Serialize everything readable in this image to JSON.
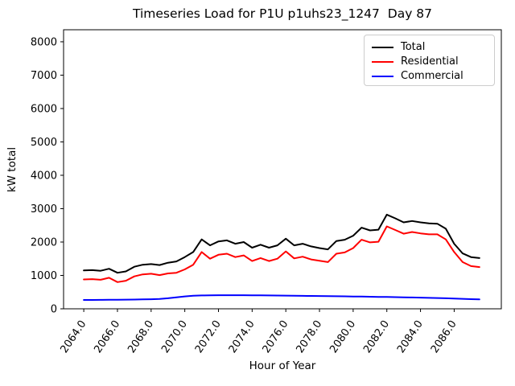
{
  "title": "Timeseries Load for P1U p1uhs23_1247  Day 87",
  "chart_data": {
    "type": "line",
    "title": "Timeseries Load for P1U p1uhs23_1247  Day 87",
    "xlabel": "Hour of Year",
    "ylabel": "kW total",
    "xlim": [
      2062.8,
      2088.8
    ],
    "ylim": [
      0,
      8360
    ],
    "grid": false,
    "legend_position": "upper right",
    "yticks": [
      0,
      1000,
      2000,
      3000,
      4000,
      5000,
      6000,
      7000,
      8000
    ],
    "xticks": [
      "2064.0",
      "2066.0",
      "2068.0",
      "2070.0",
      "2072.0",
      "2074.0",
      "2076.0",
      "2078.0",
      "2080.0",
      "2082.0",
      "2084.0",
      "2086.0"
    ],
    "xtick_values": [
      2064,
      2066,
      2068,
      2070,
      2072,
      2074,
      2076,
      2078,
      2080,
      2082,
      2084,
      2086
    ],
    "x": [
      2064,
      2064.5,
      2065,
      2065.5,
      2066,
      2066.5,
      2067,
      2067.5,
      2068,
      2068.5,
      2069,
      2069.5,
      2070,
      2070.5,
      2071,
      2071.5,
      2072,
      2072.5,
      2073,
      2073.5,
      2074,
      2074.5,
      2075,
      2075.5,
      2076,
      2076.5,
      2077,
      2077.5,
      2078,
      2078.5,
      2079,
      2079.5,
      2080,
      2080.5,
      2081,
      2081.5,
      2082,
      2082.5,
      2083,
      2083.5,
      2084,
      2084.5,
      2085,
      2085.5,
      2086,
      2086.5,
      2087,
      2087.5
    ],
    "series": [
      {
        "name": "Total",
        "color": "#000000",
        "values": [
          1150,
          1160,
          1140,
          1200,
          1080,
          1120,
          1260,
          1320,
          1340,
          1310,
          1380,
          1420,
          1550,
          1700,
          2080,
          1900,
          2020,
          2050,
          1950,
          2000,
          1830,
          1920,
          1830,
          1900,
          2100,
          1900,
          1950,
          1870,
          1820,
          1780,
          2030,
          2070,
          2190,
          2430,
          2350,
          2370,
          2820,
          2710,
          2590,
          2630,
          2590,
          2560,
          2550,
          2400,
          1950,
          1660,
          1550,
          1520
        ]
      },
      {
        "name": "Residential",
        "color": "#ff0000",
        "values": [
          880,
          890,
          870,
          930,
          800,
          840,
          970,
          1030,
          1050,
          1010,
          1060,
          1080,
          1180,
          1320,
          1700,
          1500,
          1620,
          1650,
          1550,
          1600,
          1430,
          1520,
          1430,
          1500,
          1720,
          1510,
          1560,
          1480,
          1440,
          1400,
          1650,
          1690,
          1820,
          2070,
          1990,
          2010,
          2470,
          2360,
          2250,
          2300,
          2260,
          2230,
          2230,
          2080,
          1700,
          1400,
          1280,
          1250
        ]
      },
      {
        "name": "Commercial",
        "color": "#0000ff",
        "values": [
          265,
          266,
          268,
          270,
          272,
          274,
          277,
          281,
          286,
          295,
          315,
          345,
          370,
          390,
          400,
          405,
          407,
          408,
          408,
          406,
          404,
          402,
          400,
          397,
          394,
          391,
          389,
          386,
          383,
          380,
          377,
          373,
          369,
          365,
          361,
          357,
          353,
          349,
          344,
          339,
          334,
          328,
          322,
          315,
          307,
          298,
          290,
          283
        ]
      }
    ]
  }
}
